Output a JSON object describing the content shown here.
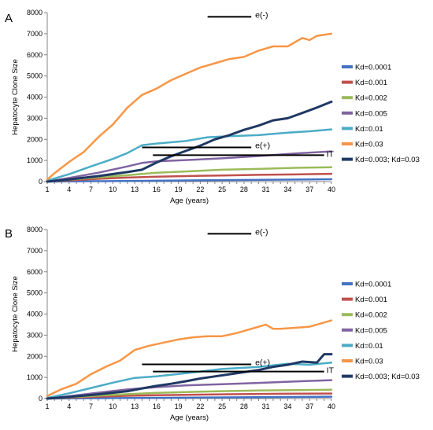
{
  "chart_data": [
    {
      "panel_label": "A",
      "type": "line",
      "xlabel": "Age (years)",
      "ylabel": "Hepatocyte Clone Size",
      "xlim": [
        1,
        40
      ],
      "ylim": [
        0,
        8000
      ],
      "x_ticks": [
        1,
        4,
        7,
        10,
        13,
        16,
        19,
        22,
        25,
        28,
        31,
        34,
        37,
        40
      ],
      "y_ticks": [
        0,
        1000,
        2000,
        3000,
        4000,
        5000,
        6000,
        7000,
        8000
      ],
      "grid": false,
      "legend_position": "right",
      "series": [
        {
          "name": "Kd=0.0001",
          "color": "#4472c4",
          "x": [
            1,
            40
          ],
          "y": [
            0,
            110
          ]
        },
        {
          "name": "Kd=0.001",
          "color": "#c0504d",
          "x": [
            1,
            4,
            8,
            12,
            16,
            20,
            25,
            30,
            35,
            40
          ],
          "y": [
            0,
            60,
            130,
            190,
            230,
            260,
            290,
            320,
            340,
            370
          ]
        },
        {
          "name": "Kd=0.002",
          "color": "#9bbb59",
          "x": [
            1,
            4,
            8,
            12,
            16,
            20,
            25,
            30,
            35,
            40
          ],
          "y": [
            0,
            90,
            200,
            300,
            420,
            480,
            560,
            600,
            650,
            680
          ]
        },
        {
          "name": "Kd=0.005",
          "color": "#8064a2",
          "x": [
            1,
            4,
            8,
            12,
            14,
            16,
            20,
            25,
            30,
            35,
            40
          ],
          "y": [
            0,
            170,
            420,
            720,
            880,
            960,
            1020,
            1100,
            1210,
            1330,
            1430
          ]
        },
        {
          "name": "Kd=0.01",
          "color": "#4bacc6",
          "x": [
            1,
            4,
            7,
            10,
            12,
            14,
            16,
            20,
            23,
            26,
            30,
            34,
            37,
            40
          ],
          "y": [
            50,
            350,
            720,
            1070,
            1350,
            1720,
            1800,
            1920,
            2100,
            2150,
            2200,
            2320,
            2380,
            2470
          ]
        },
        {
          "name": "Kd=0.03",
          "color": "#f79646",
          "x": [
            1,
            2,
            4,
            6,
            8,
            10,
            12,
            14,
            16,
            18,
            20,
            22,
            24,
            26,
            28,
            30,
            32,
            34,
            36,
            37,
            38,
            40
          ],
          "y": [
            100,
            400,
            930,
            1400,
            2100,
            2700,
            3500,
            4100,
            4400,
            4800,
            5100,
            5400,
            5600,
            5800,
            5900,
            6200,
            6400,
            6400,
            6800,
            6700,
            6900,
            7000
          ]
        },
        {
          "name": "Kd=0.003; Kd=0.03",
          "color": "#1f3864",
          "x": [
            1,
            4,
            8,
            12,
            14,
            16,
            18,
            20,
            22,
            24,
            26,
            28,
            30,
            32,
            34,
            36,
            38,
            40
          ],
          "y": [
            0,
            100,
            260,
            450,
            560,
            900,
            1200,
            1450,
            1700,
            2000,
            2200,
            2450,
            2650,
            2900,
            3000,
            3250,
            3500,
            3780
          ]
        }
      ],
      "annotations": [
        {
          "label": "e(-)",
          "x1": 23,
          "x2": 29,
          "y": 7800
        },
        {
          "label": "e(+)",
          "x1": 14,
          "x2": 29,
          "y": 1620
        },
        {
          "label": "IT",
          "x1": 15.5,
          "x2": 39,
          "y": 1250
        }
      ]
    },
    {
      "panel_label": "B",
      "type": "line",
      "xlabel": "Age (years)",
      "ylabel": "Hepatocyte Clone Size",
      "xlim": [
        1,
        40
      ],
      "ylim": [
        0,
        8000
      ],
      "x_ticks": [
        1,
        4,
        7,
        10,
        13,
        16,
        19,
        22,
        25,
        28,
        31,
        34,
        37,
        40
      ],
      "y_ticks": [
        0,
        1000,
        2000,
        3000,
        4000,
        5000,
        6000,
        7000,
        8000
      ],
      "grid": false,
      "legend_position": "right",
      "series": [
        {
          "name": "Kd=0.0001",
          "color": "#4472c4",
          "x": [
            1,
            40
          ],
          "y": [
            0,
            90
          ]
        },
        {
          "name": "Kd=0.001",
          "color": "#c0504d",
          "x": [
            1,
            4,
            8,
            12,
            16,
            20,
            25,
            30,
            35,
            40
          ],
          "y": [
            0,
            40,
            90,
            130,
            160,
            180,
            200,
            220,
            230,
            240
          ]
        },
        {
          "name": "Kd=0.002",
          "color": "#9bbb59",
          "x": [
            1,
            4,
            8,
            12,
            16,
            20,
            25,
            30,
            35,
            40
          ],
          "y": [
            0,
            60,
            140,
            210,
            270,
            310,
            350,
            380,
            400,
            420
          ]
        },
        {
          "name": "Kd=0.005",
          "color": "#8064a2",
          "x": [
            1,
            4,
            8,
            12,
            16,
            20,
            25,
            30,
            35,
            40
          ],
          "y": [
            0,
            110,
            280,
            430,
            540,
            620,
            680,
            740,
            810,
            870
          ]
        },
        {
          "name": "Kd=0.01",
          "color": "#4bacc6",
          "x": [
            1,
            4,
            7,
            10,
            13,
            16,
            20,
            25,
            30,
            34,
            37,
            40
          ],
          "y": [
            30,
            250,
            500,
            750,
            980,
            1050,
            1200,
            1400,
            1500,
            1650,
            1600,
            1700
          ]
        },
        {
          "name": "Kd=0.03",
          "color": "#f79646",
          "x": [
            1,
            3,
            5,
            7,
            9,
            11,
            13,
            15,
            17,
            19,
            21,
            23,
            25,
            27,
            29,
            31,
            32,
            33,
            35,
            37,
            38,
            40
          ],
          "y": [
            120,
            450,
            700,
            1150,
            1500,
            1800,
            2300,
            2500,
            2650,
            2800,
            2900,
            2950,
            2950,
            3100,
            3300,
            3500,
            3300,
            3300,
            3350,
            3400,
            3500,
            3700
          ]
        },
        {
          "name": "Kd=0.003; Kd=0.03",
          "color": "#1f3864",
          "x": [
            1,
            4,
            8,
            12,
            14,
            16,
            18,
            20,
            22,
            24,
            26,
            28,
            30,
            32,
            34,
            36,
            38,
            39,
            40
          ],
          "y": [
            0,
            80,
            200,
            350,
            480,
            600,
            700,
            820,
            950,
            1050,
            1150,
            1250,
            1350,
            1500,
            1600,
            1750,
            1700,
            2100,
            2100
          ]
        }
      ],
      "annotations": [
        {
          "label": "e(-)",
          "x1": 23,
          "x2": 29,
          "y": 7800
        },
        {
          "label": "e(+)",
          "x1": 14,
          "x2": 29,
          "y": 1620
        },
        {
          "label": "IT",
          "x1": 15.5,
          "x2": 39,
          "y": 1280
        }
      ]
    }
  ]
}
